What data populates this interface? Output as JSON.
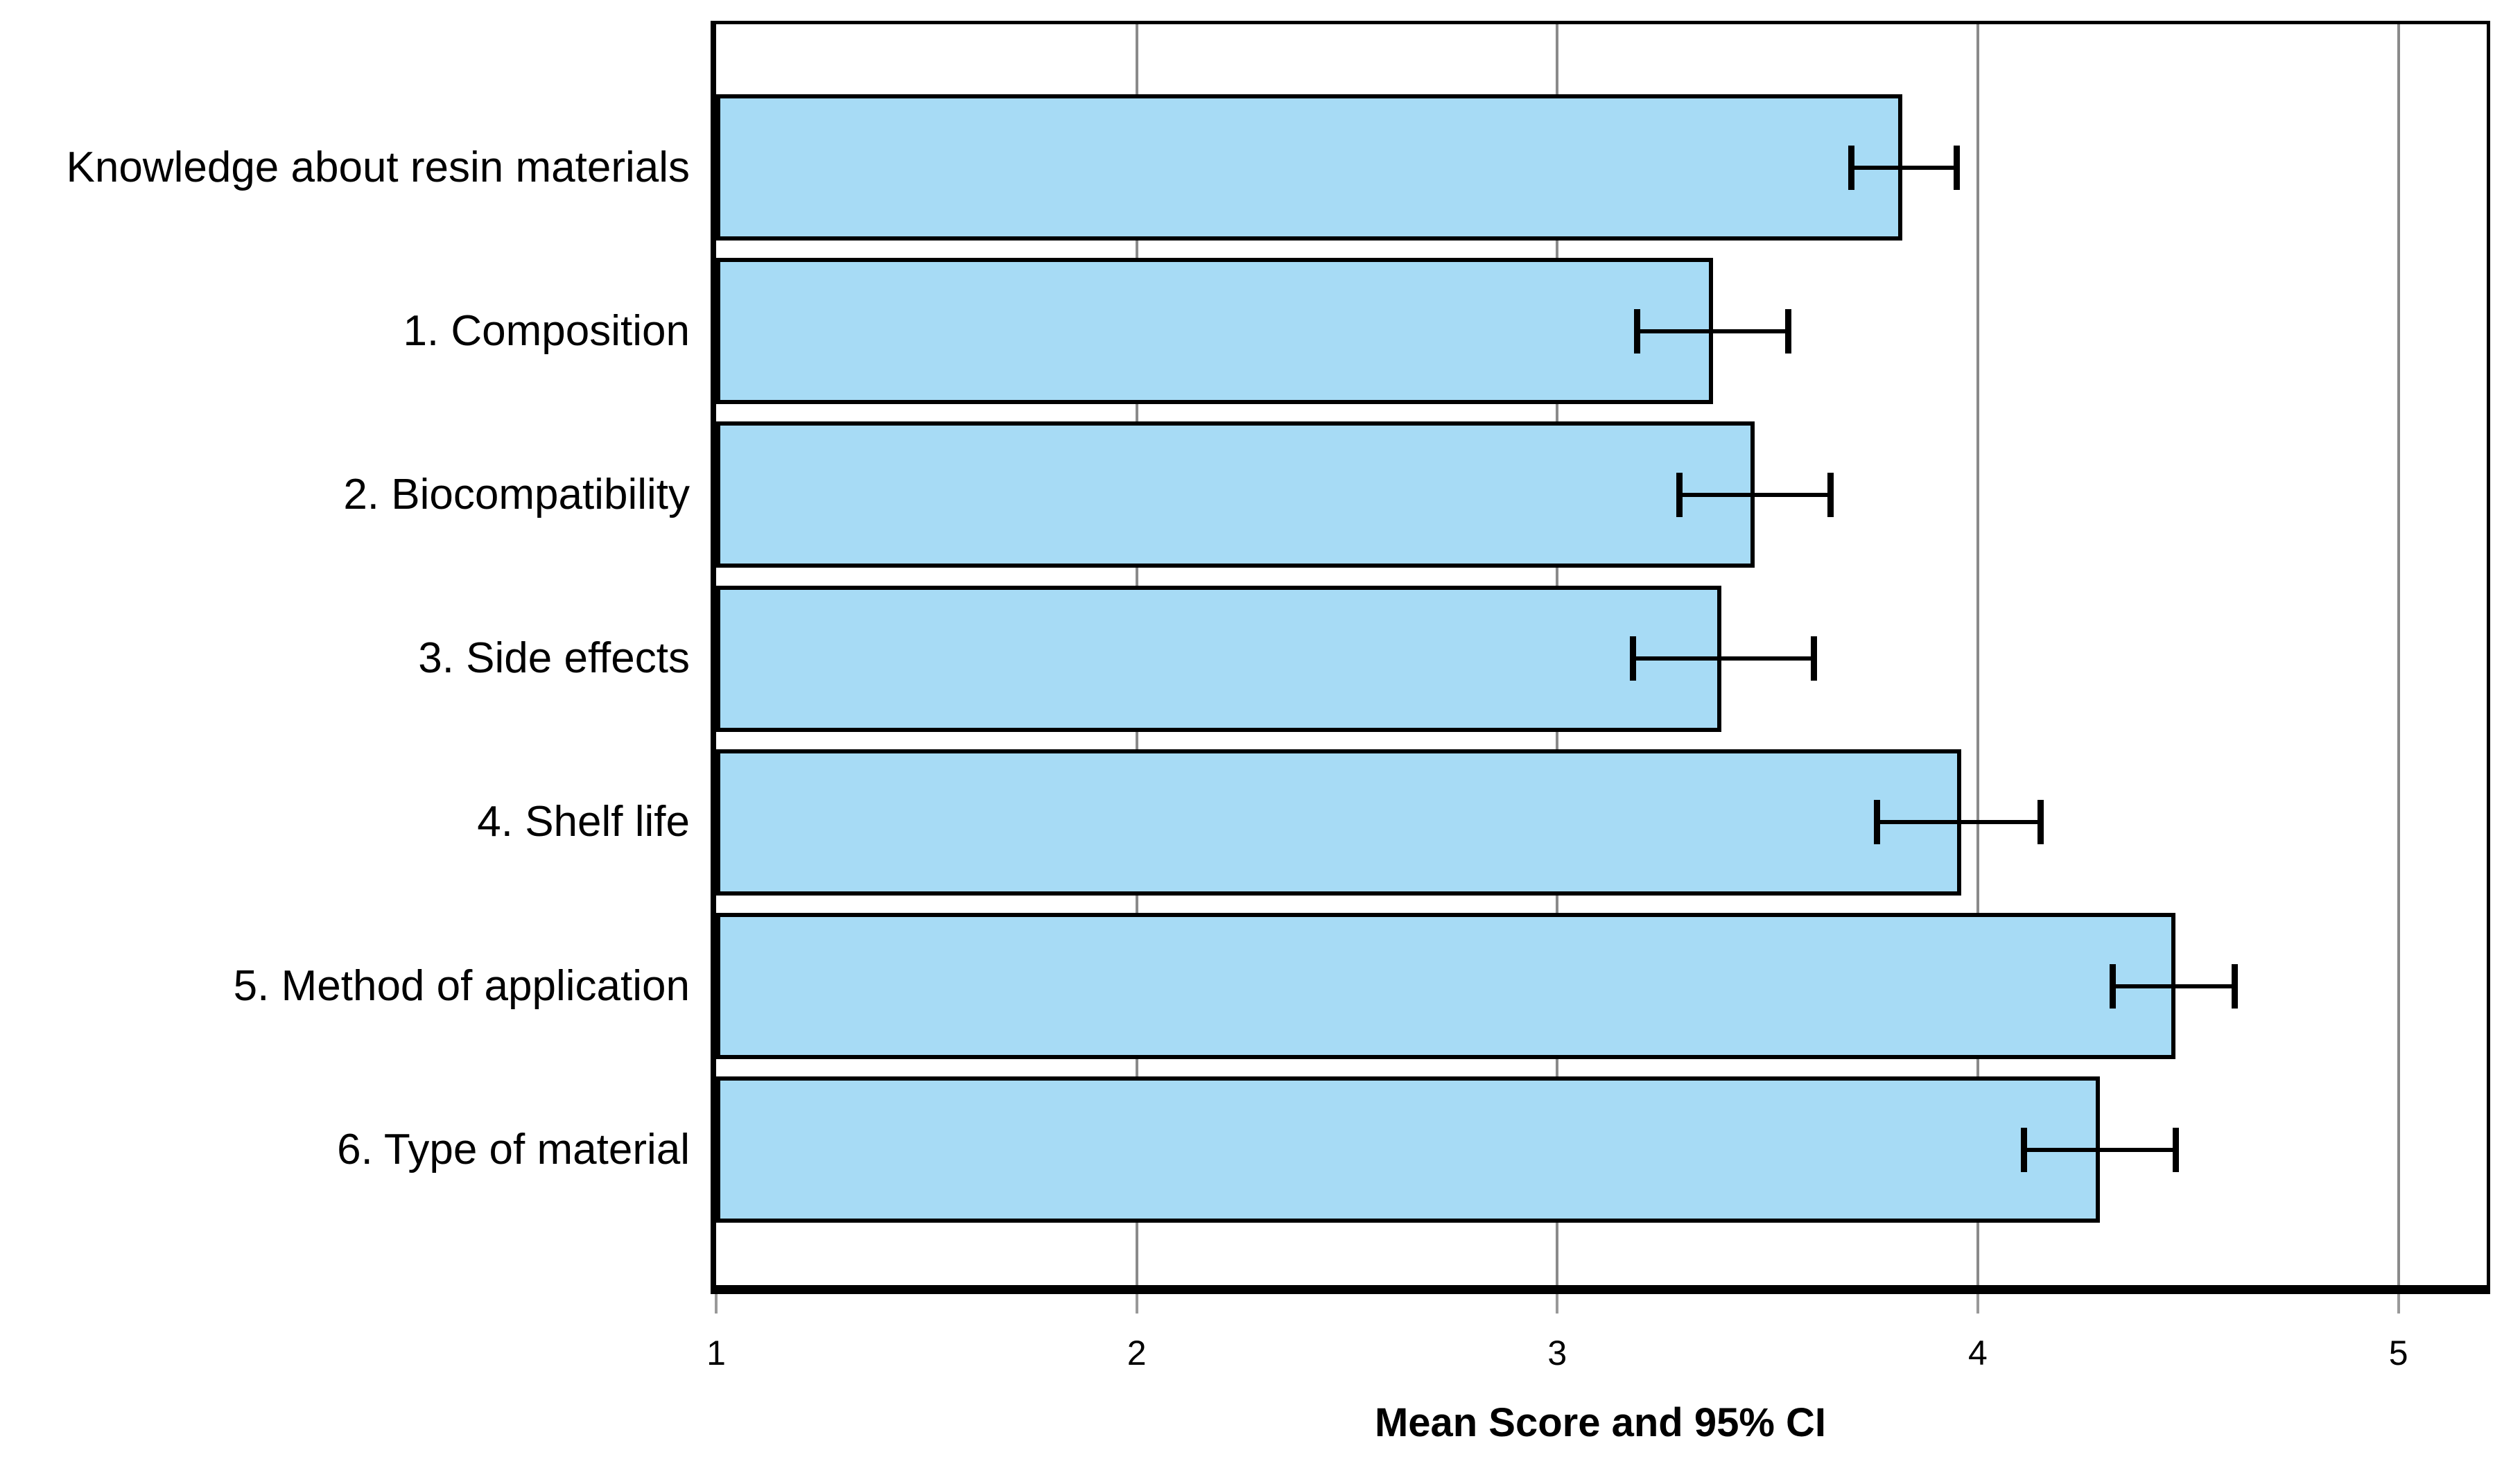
{
  "chart_data": {
    "type": "bar",
    "orientation": "horizontal",
    "title": "",
    "xlabel": "Mean Score and 95% CI",
    "ylabel": "",
    "categories": [
      "Knowledge about resin materials",
      "1. Composition",
      "2. Biocompatibility",
      "3. Side effects",
      "4. Shelf life",
      "5. Method of application",
      "6. Type of material"
    ],
    "series": [
      {
        "name": "Mean Score",
        "values": [
          3.82,
          3.37,
          3.47,
          3.39,
          3.96,
          4.47,
          4.29
        ]
      }
    ],
    "error_bars_95ci": {
      "low": [
        3.7,
        3.19,
        3.29,
        3.18,
        3.76,
        4.32,
        4.11
      ],
      "high": [
        3.95,
        3.55,
        3.65,
        3.61,
        4.15,
        4.61,
        4.47
      ]
    },
    "x_ticks": [
      1,
      2,
      3,
      4,
      5
    ],
    "xlim": [
      1,
      5.21
    ],
    "grid": "vertical-gridlines-at-ticks-behind-bars",
    "legend_position": "none",
    "colors": {
      "bar_fill": "#A7DBF5",
      "bar_border": "#000000",
      "gridline": "#8A8A8A",
      "tick_mark": "#999999",
      "error_bar": "#000000",
      "text": "#000000",
      "background": "#FFFFFF"
    }
  }
}
